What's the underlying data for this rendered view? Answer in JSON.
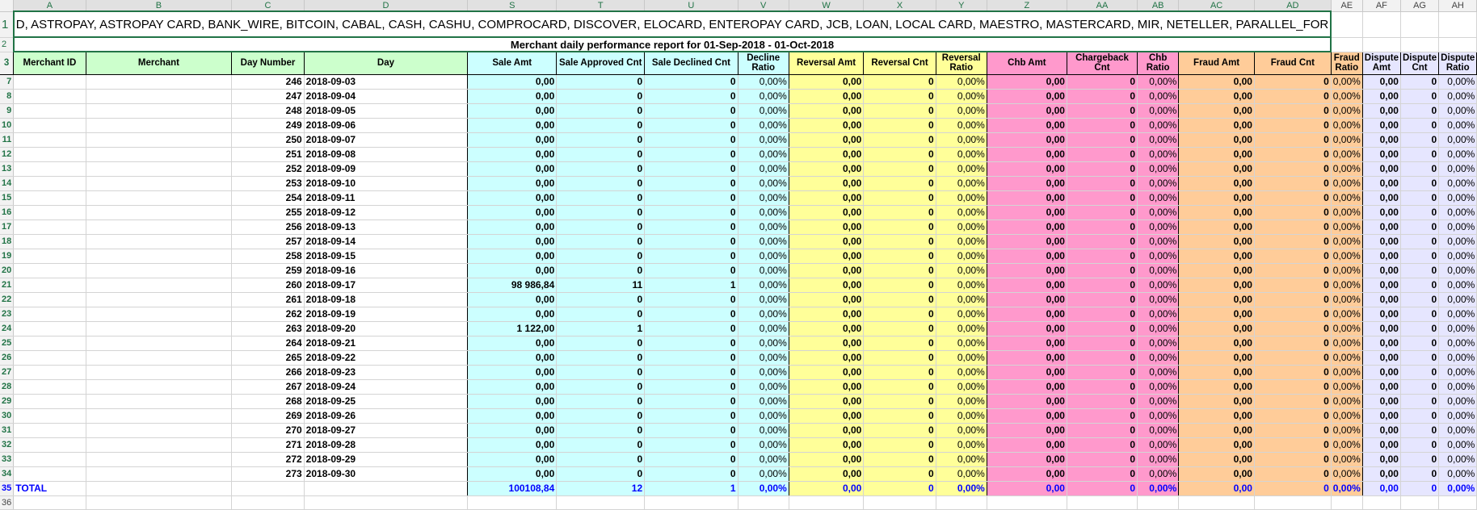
{
  "column_letters": [
    "A",
    "B",
    "C",
    "D",
    "S",
    "T",
    "U",
    "V",
    "W",
    "X",
    "Y",
    "Z",
    "AA",
    "AB",
    "AC",
    "AD",
    "AE",
    "AF",
    "AG",
    "AH"
  ],
  "row1_text": "D, ASTROPAY, ASTROPAY CARD, BANK_WIRE, BITCOIN, CABAL, CASH, CASHU, COMPROCARD, DISCOVER, ELOCARD, ENTEROPAY CARD, JCB, LOAN, LOCAL CARD, MAESTRO, MASTERCARD, MIR, NETELLER, PARALLEL_FOR",
  "title": "Merchant daily performance report for 01-Sep-2018 - 01-Oct-2018",
  "headers": [
    "Merchant ID",
    "Merchant",
    "Day Number",
    "Day",
    "Sale Amt",
    "Sale Approved Cnt",
    "Sale Declined Cnt",
    "Decline Ratio",
    "Reversal Amt",
    "Reversal Cnt",
    "Reversal Ratio",
    "Chb Amt",
    "Chargeback Cnt",
    "Chb Ratio",
    "Fraud Amt",
    "Fraud Cnt",
    "Fraud Ratio",
    "Dispute Amt",
    "Dispute Cnt",
    "Dispute Ratio"
  ],
  "colors": {
    "merchant": "#ccffcc",
    "sale": "#ccffff",
    "reversal": "#ffff99",
    "chargeback": "#ff99cc",
    "fraud": "#ffcc99",
    "dispute": "#e6e6ff",
    "total_text": "#0000ff",
    "selection": "#217346"
  },
  "rows": [
    {
      "row": "7",
      "day_number": "246",
      "day": "2018-09-03",
      "sale_amt": "0,00",
      "sale_approved": "0",
      "sale_declined": "0"
    },
    {
      "row": "8",
      "day_number": "247",
      "day": "2018-09-04",
      "sale_amt": "0,00",
      "sale_approved": "0",
      "sale_declined": "0"
    },
    {
      "row": "9",
      "day_number": "248",
      "day": "2018-09-05",
      "sale_amt": "0,00",
      "sale_approved": "0",
      "sale_declined": "0"
    },
    {
      "row": "10",
      "day_number": "249",
      "day": "2018-09-06",
      "sale_amt": "0,00",
      "sale_approved": "0",
      "sale_declined": "0"
    },
    {
      "row": "11",
      "day_number": "250",
      "day": "2018-09-07",
      "sale_amt": "0,00",
      "sale_approved": "0",
      "sale_declined": "0"
    },
    {
      "row": "12",
      "day_number": "251",
      "day": "2018-09-08",
      "sale_amt": "0,00",
      "sale_approved": "0",
      "sale_declined": "0"
    },
    {
      "row": "13",
      "day_number": "252",
      "day": "2018-09-09",
      "sale_amt": "0,00",
      "sale_approved": "0",
      "sale_declined": "0"
    },
    {
      "row": "14",
      "day_number": "253",
      "day": "2018-09-10",
      "sale_amt": "0,00",
      "sale_approved": "0",
      "sale_declined": "0"
    },
    {
      "row": "15",
      "day_number": "254",
      "day": "2018-09-11",
      "sale_amt": "0,00",
      "sale_approved": "0",
      "sale_declined": "0"
    },
    {
      "row": "16",
      "day_number": "255",
      "day": "2018-09-12",
      "sale_amt": "0,00",
      "sale_approved": "0",
      "sale_declined": "0"
    },
    {
      "row": "17",
      "day_number": "256",
      "day": "2018-09-13",
      "sale_amt": "0,00",
      "sale_approved": "0",
      "sale_declined": "0"
    },
    {
      "row": "18",
      "day_number": "257",
      "day": "2018-09-14",
      "sale_amt": "0,00",
      "sale_approved": "0",
      "sale_declined": "0"
    },
    {
      "row": "19",
      "day_number": "258",
      "day": "2018-09-15",
      "sale_amt": "0,00",
      "sale_approved": "0",
      "sale_declined": "0"
    },
    {
      "row": "20",
      "day_number": "259",
      "day": "2018-09-16",
      "sale_amt": "0,00",
      "sale_approved": "0",
      "sale_declined": "0"
    },
    {
      "row": "21",
      "day_number": "260",
      "day": "2018-09-17",
      "sale_amt": "98 986,84",
      "sale_approved": "11",
      "sale_declined": "1"
    },
    {
      "row": "22",
      "day_number": "261",
      "day": "2018-09-18",
      "sale_amt": "0,00",
      "sale_approved": "0",
      "sale_declined": "0"
    },
    {
      "row": "23",
      "day_number": "262",
      "day": "2018-09-19",
      "sale_amt": "0,00",
      "sale_approved": "0",
      "sale_declined": "0"
    },
    {
      "row": "24",
      "day_number": "263",
      "day": "2018-09-20",
      "sale_amt": "1 122,00",
      "sale_approved": "1",
      "sale_declined": "0"
    },
    {
      "row": "25",
      "day_number": "264",
      "day": "2018-09-21",
      "sale_amt": "0,00",
      "sale_approved": "0",
      "sale_declined": "0"
    },
    {
      "row": "26",
      "day_number": "265",
      "day": "2018-09-22",
      "sale_amt": "0,00",
      "sale_approved": "0",
      "sale_declined": "0"
    },
    {
      "row": "27",
      "day_number": "266",
      "day": "2018-09-23",
      "sale_amt": "0,00",
      "sale_approved": "0",
      "sale_declined": "0"
    },
    {
      "row": "28",
      "day_number": "267",
      "day": "2018-09-24",
      "sale_amt": "0,00",
      "sale_approved": "0",
      "sale_declined": "0"
    },
    {
      "row": "29",
      "day_number": "268",
      "day": "2018-09-25",
      "sale_amt": "0,00",
      "sale_approved": "0",
      "sale_declined": "0"
    },
    {
      "row": "30",
      "day_number": "269",
      "day": "2018-09-26",
      "sale_amt": "0,00",
      "sale_approved": "0",
      "sale_declined": "0"
    },
    {
      "row": "31",
      "day_number": "270",
      "day": "2018-09-27",
      "sale_amt": "0,00",
      "sale_approved": "0",
      "sale_declined": "0"
    },
    {
      "row": "32",
      "day_number": "271",
      "day": "2018-09-28",
      "sale_amt": "0,00",
      "sale_approved": "0",
      "sale_declined": "0"
    },
    {
      "row": "33",
      "day_number": "272",
      "day": "2018-09-29",
      "sale_amt": "0,00",
      "sale_approved": "0",
      "sale_declined": "0"
    },
    {
      "row": "34",
      "day_number": "273",
      "day": "2018-09-30",
      "sale_amt": "0,00",
      "sale_approved": "0",
      "sale_declined": "0"
    }
  ],
  "zero_values": {
    "ratio": "0,00%",
    "amount": "0,00",
    "count": "0"
  },
  "total": {
    "row": "35",
    "label": "TOTAL",
    "sale_amt": "100108,84",
    "sale_approved": "12",
    "sale_declined": "1",
    "decline_ratio": "0,00%",
    "reversal_amt": "0,00",
    "reversal_cnt": "0",
    "reversal_ratio": "0,00%",
    "chb_amt": "0,00",
    "chb_cnt": "0",
    "chb_ratio": "0,00%",
    "fraud_amt": "0,00",
    "fraud_cnt": "0",
    "fraud_ratio": "0,00%",
    "dispute_amt": "0,00",
    "dispute_cnt": "0",
    "dispute_ratio": "0,00%"
  },
  "row_numbers": {
    "r1": "1",
    "r2": "2",
    "r3": "3",
    "r36": "36"
  }
}
